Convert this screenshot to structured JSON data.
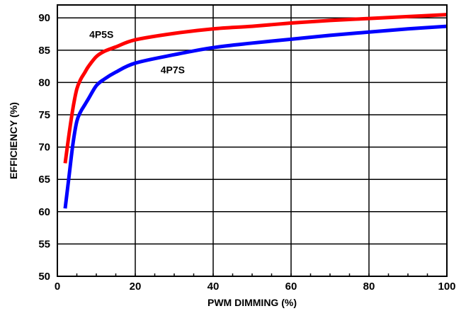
{
  "chart_data": {
    "type": "line",
    "title": "",
    "xlabel": "PWM DIMMING (%)",
    "ylabel": "EFFICIENCY (%)",
    "xlim": [
      0,
      100
    ],
    "ylim": [
      50,
      92
    ],
    "xticks": [
      0,
      20,
      40,
      60,
      80,
      100
    ],
    "yticks": [
      50,
      55,
      60,
      65,
      70,
      75,
      80,
      85,
      90
    ],
    "x_tick_labels": [
      "0",
      "20",
      "40",
      "60",
      "80",
      "100"
    ],
    "y_tick_labels": [
      "50",
      "55",
      "60",
      "65",
      "70",
      "75",
      "80",
      "85",
      "90"
    ],
    "grid": true,
    "legend": "none",
    "series": [
      {
        "name": "4P5S",
        "color": "#ff0000",
        "x": [
          2,
          3,
          4,
          5,
          6,
          7,
          8,
          10,
          12,
          15,
          20,
          30,
          40,
          50,
          60,
          70,
          80,
          90,
          100
        ],
        "y": [
          67.5,
          72,
          76,
          79,
          80.5,
          81.5,
          82.5,
          84,
          84.8,
          85.5,
          86.6,
          87.6,
          88.3,
          88.7,
          89.2,
          89.6,
          89.9,
          90.2,
          90.5
        ]
      },
      {
        "name": "4P7S",
        "color": "#0000ff",
        "x": [
          2,
          3,
          4,
          5,
          6,
          7,
          8,
          10,
          12,
          15,
          20,
          30,
          40,
          50,
          60,
          70,
          80,
          90,
          100
        ],
        "y": [
          60.5,
          65.5,
          70.5,
          74,
          75.5,
          76.5,
          77.5,
          79.5,
          80.5,
          81.6,
          83,
          84.3,
          85.4,
          86.1,
          86.7,
          87.3,
          87.8,
          88.3,
          88.7
        ]
      }
    ]
  }
}
